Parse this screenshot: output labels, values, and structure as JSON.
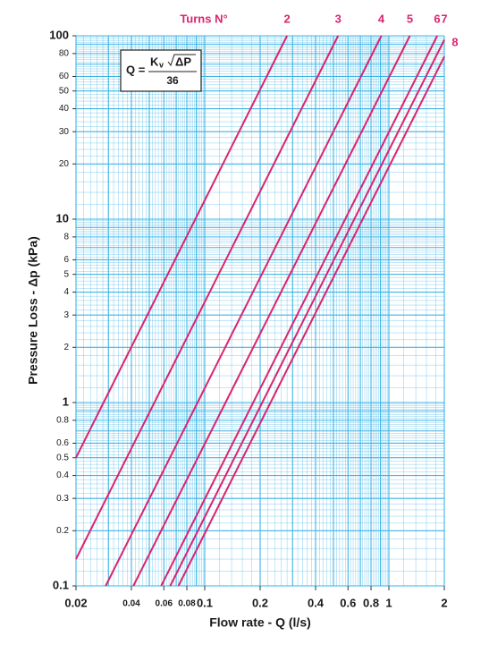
{
  "chart_data": {
    "type": "line",
    "turns_label": "Turns N°",
    "xlabel": "Flow rate - Q (l/s)",
    "ylabel": "Pressure Loss  - Δp (kPa)",
    "formula": {
      "lhs": "Q =",
      "k": "K",
      "sub": "v",
      "radicand": "ΔP",
      "denominator": "36"
    },
    "log_x": true,
    "log_y": true,
    "grid": true,
    "grid_color": "#3cb4e6",
    "xlim": [
      0.02,
      2
    ],
    "ylim": [
      0.1,
      100
    ],
    "xticks": [
      0.02,
      0.04,
      0.06,
      0.08,
      0.1,
      0.2,
      0.4,
      0.6,
      0.8,
      1,
      2
    ],
    "yticks": [
      0.1,
      0.2,
      0.3,
      0.4,
      0.5,
      0.6,
      0.8,
      1,
      2,
      3,
      4,
      5,
      6,
      8,
      10,
      20,
      30,
      40,
      50,
      60,
      80,
      100
    ],
    "xgrid": [
      0.02,
      0.03,
      0.04,
      0.05,
      0.06,
      0.07,
      0.08,
      0.09,
      0.1,
      0.2,
      0.3,
      0.4,
      0.5,
      0.6,
      0.7,
      0.8,
      0.9,
      1,
      2
    ],
    "ygrid": [
      0.1,
      0.2,
      0.3,
      0.4,
      0.5,
      0.6,
      0.7,
      0.8,
      0.9,
      1,
      2,
      3,
      4,
      5,
      6,
      7,
      8,
      9,
      10,
      20,
      30,
      40,
      50,
      60,
      70,
      80,
      90,
      100
    ],
    "series": [
      {
        "name": "2",
        "color": "#d9246f",
        "x": [
          0.02,
          0.28
        ],
        "values": [
          0.5,
          100
        ]
      },
      {
        "name": "3",
        "color": "#d9246f",
        "x": [
          0.02,
          0.53
        ],
        "values": [
          0.14,
          100
        ]
      },
      {
        "name": "4",
        "color": "#d9246f",
        "x": [
          0.029,
          0.91
        ],
        "values": [
          0.1,
          100
        ]
      },
      {
        "name": "5",
        "color": "#d9246f",
        "x": [
          0.041,
          1.3
        ],
        "values": [
          0.1,
          100
        ]
      },
      {
        "name": "6",
        "color": "#d9246f",
        "x": [
          0.058,
          1.83
        ],
        "values": [
          0.1,
          100
        ]
      },
      {
        "name": "7",
        "color": "#d9246f",
        "x": [
          0.065,
          2
        ],
        "values": [
          0.1,
          95
        ]
      },
      {
        "name": "8",
        "color": "#d9246f",
        "x": [
          0.072,
          2
        ],
        "values": [
          0.1,
          77
        ]
      }
    ]
  }
}
